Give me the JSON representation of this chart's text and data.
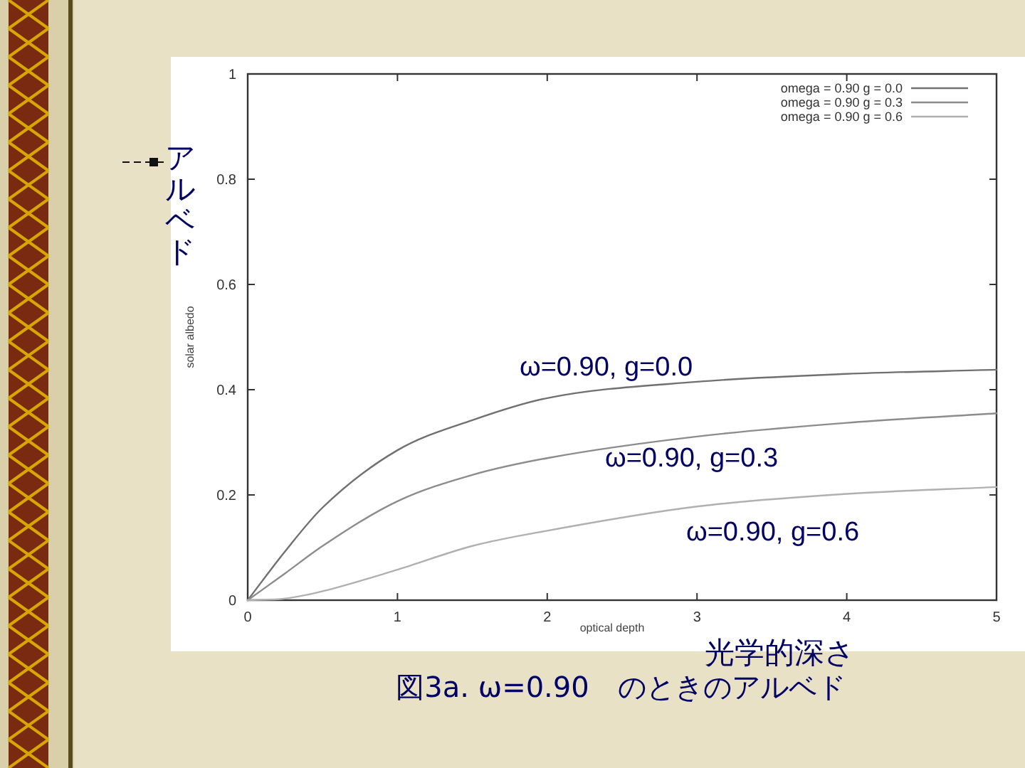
{
  "chart_data": {
    "type": "line",
    "xlabel": "optical depth",
    "ylabel": "solar albedo",
    "x": [
      0,
      0.25,
      0.5,
      1,
      1.5,
      2,
      3,
      4,
      5
    ],
    "series": [
      {
        "name": "omega = 0.90 g = 0.0",
        "color": "#707070",
        "values": [
          0,
          0.093,
          0.176,
          0.285,
          0.342,
          0.384,
          0.415,
          0.43,
          0.438
        ]
      },
      {
        "name": "omega = 0.90 g = 0.3",
        "color": "#8c8c8c",
        "values": [
          0,
          0.051,
          0.103,
          0.188,
          0.238,
          0.27,
          0.311,
          0.337,
          0.355
        ]
      },
      {
        "name": "omega = 0.90 g = 0.6",
        "color": "#b0b0b0",
        "values": [
          0,
          0.003,
          0.017,
          0.058,
          0.103,
          0.132,
          0.178,
          0.202,
          0.215
        ]
      }
    ],
    "xlim": [
      0,
      5
    ],
    "xticks": [
      0,
      1,
      2,
      3,
      4,
      5
    ],
    "ylim": [
      0,
      1
    ],
    "yticks": [
      0,
      0.2,
      0.4,
      0.6,
      0.8,
      1
    ],
    "grid": false,
    "legend": "top right",
    "marker": "none",
    "line_style": "solid",
    "annotations": [
      "ω=0.90, g=0.0",
      "ω=0.90, g=0.3",
      "ω=0.90, g=0.6",
      "アルベド",
      "光学的深さ",
      "図3a. ω=0.90　のときのアルベド"
    ]
  }
}
